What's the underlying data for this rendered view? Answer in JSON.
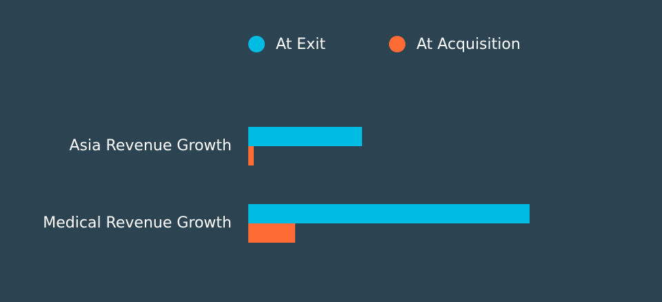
{
  "chart_data": {
    "type": "bar",
    "categories": [
      "Asia Revenue Growth",
      "Medical Revenue Growth"
    ],
    "series": [
      {
        "name": "At Exit",
        "color": "#00bce4",
        "values": [
          165,
          408
        ]
      },
      {
        "name": "At Acquisition",
        "color": "#ff6b35",
        "values": [
          8,
          68
        ]
      }
    ],
    "xlim": [
      0,
      600
    ]
  }
}
